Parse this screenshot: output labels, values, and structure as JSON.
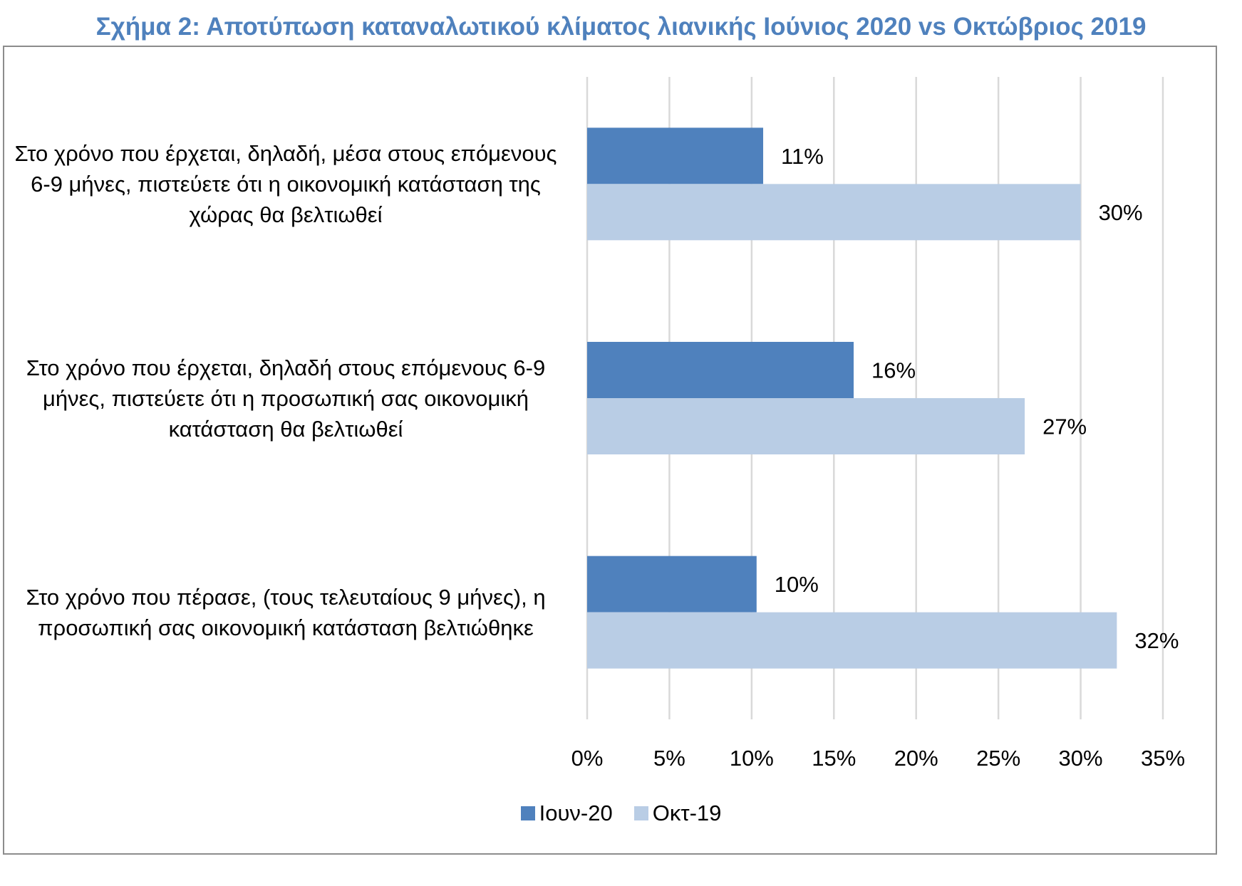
{
  "chart_data": {
    "type": "bar",
    "orientation": "horizontal",
    "title": "Σχήμα 2: Αποτύπωση καταναλωτικού κλίματος λιανικής Ιούνιος 2020 vs Οκτώβριος 2019",
    "categories": [
      "Στο χρόνο που έρχεται, δηλαδή, μέσα στους επόμενους 6-9 μήνες, πιστεύετε ότι η οικονομική κατάσταση της χώρας θα βελτιωθεί",
      "Στο χρόνο που έρχεται, δηλαδή στους επόμενους 6-9 μήνες, πιστεύετε ότι η προσωπική σας οικονομική κατάσταση θα βελτιωθεί",
      "Στο χρόνο που πέρασε, (τους τελευταίους 9 μήνες), η προσωπική σας οικονομική κατάσταση βελτιώθηκε"
    ],
    "category_lines": [
      [
        "Στο χρόνο που έρχεται, δηλαδή, μέσα στους επόμενους",
        "6-9 μήνες, πιστεύετε ότι η οικονομική κατάσταση της",
        "χώρας θα βελτιωθεί"
      ],
      [
        "Στο χρόνο που έρχεται, δηλαδή στους επόμενους 6-9",
        "μήνες, πιστεύετε ότι η προσωπική σας οικονομική",
        "κατάσταση θα βελτιωθεί"
      ],
      [
        "Στο χρόνο που πέρασε, (τους τελευταίους 9 μήνες), η",
        "προσωπική σας οικονομική κατάσταση βελτιώθηκε"
      ]
    ],
    "series": [
      {
        "name": "Ιουν-20",
        "color": "#4f81bd",
        "values": [
          10.7,
          16.2,
          10.3
        ],
        "labels": [
          "11%",
          "16%",
          "10%"
        ]
      },
      {
        "name": "Οκτ-19",
        "color": "#b9cde5",
        "values": [
          30.0,
          26.6,
          32.2
        ],
        "labels": [
          "30%",
          "27%",
          "32%"
        ]
      }
    ],
    "xlim": [
      0,
      35
    ],
    "xticks": [
      0,
      5,
      10,
      15,
      20,
      25,
      30,
      35
    ],
    "xtick_labels": [
      "0%",
      "5%",
      "10%",
      "15%",
      "20%",
      "25%",
      "30%",
      "35%"
    ],
    "grid": true,
    "gridline_color": "#d9d9d9",
    "legend_position": "bottom",
    "xlabel": "",
    "ylabel": ""
  }
}
